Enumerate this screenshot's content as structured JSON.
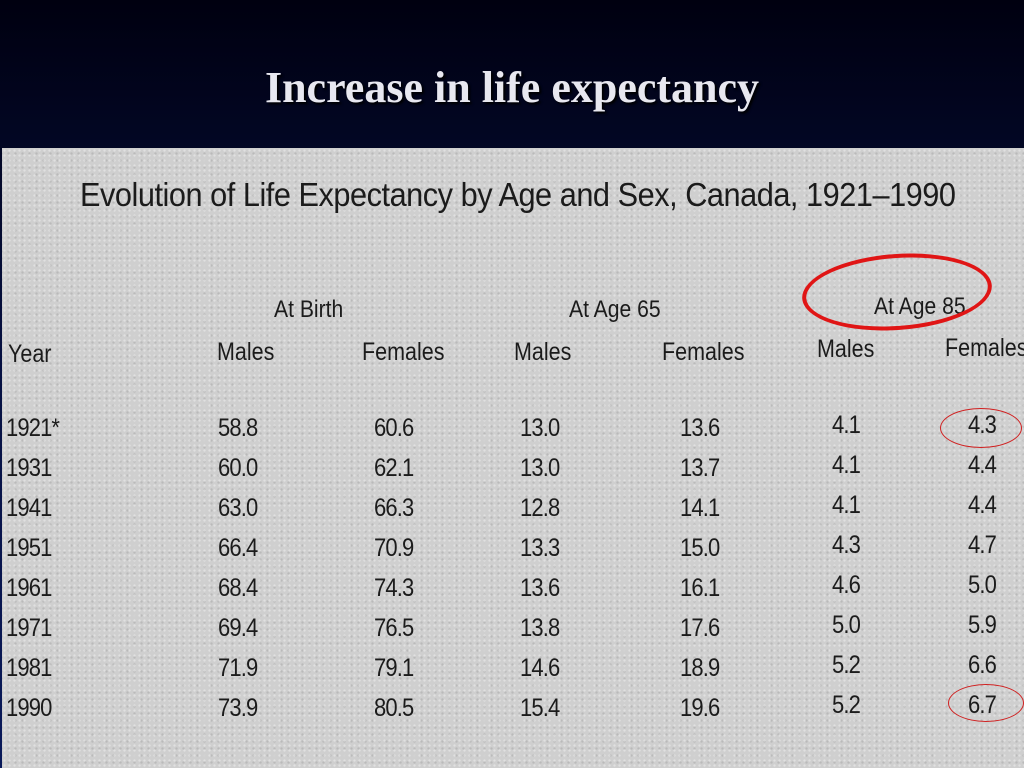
{
  "slide": {
    "title": "Increase in life expectancy"
  },
  "table": {
    "title": "Evolution of Life Expectancy by Age and Sex, Canada, 1921–1990",
    "groups": [
      "At Birth",
      "At Age 65",
      "At Age 85"
    ],
    "columns": [
      "Year",
      "Males",
      "Females",
      "Males",
      "Females",
      "Males",
      "Females"
    ],
    "rows": [
      [
        "1921*",
        "58.8",
        "60.6",
        "13.0",
        "13.6",
        "4.1",
        "4.3"
      ],
      [
        "1931",
        "60.0",
        "62.1",
        "13.0",
        "13.7",
        "4.1",
        "4.4"
      ],
      [
        "1941",
        "63.0",
        "66.3",
        "12.8",
        "14.1",
        "4.1",
        "4.4"
      ],
      [
        "1951",
        "66.4",
        "70.9",
        "13.3",
        "15.0",
        "4.3",
        "4.7"
      ],
      [
        "1961",
        "68.4",
        "74.3",
        "13.6",
        "16.1",
        "4.6",
        "5.0"
      ],
      [
        "1971",
        "69.4",
        "76.5",
        "13.8",
        "17.6",
        "5.0",
        "5.9"
      ],
      [
        "1981",
        "71.9",
        "79.1",
        "14.6",
        "18.9",
        "5.2",
        "6.6"
      ],
      [
        "1990",
        "73.9",
        "80.5",
        "15.4",
        "19.6",
        "5.2",
        "6.7"
      ]
    ]
  },
  "highlight_color": "#e01515"
}
